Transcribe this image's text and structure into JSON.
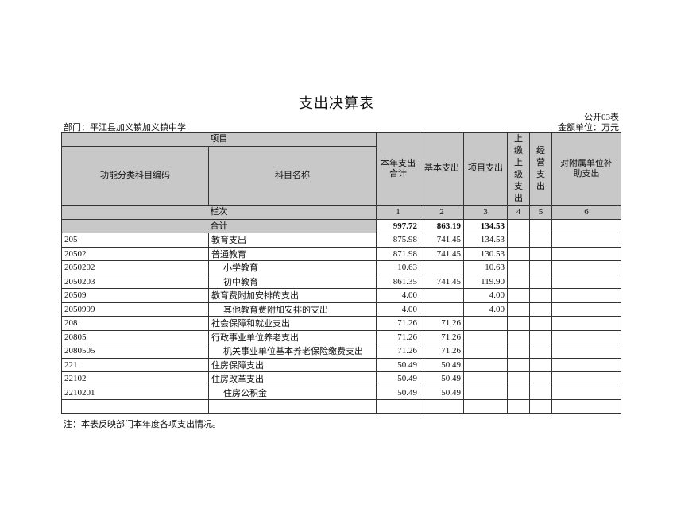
{
  "title": "支出决算表",
  "form_no": "公开03表",
  "department": "部门：平江县加义镇加义镇中学",
  "unit": "金额单位：万元",
  "header": {
    "item": "项目",
    "code": "功能分类科目编码",
    "name": "科目名称",
    "total": "本年支出合计",
    "basic": "基本支出",
    "project": "项目支出",
    "upper": "上缴上级支出",
    "business": "经营支出",
    "subsidy": "对附属单位补助支出",
    "seq_label": "栏次",
    "seq": [
      "1",
      "2",
      "3",
      "4",
      "5",
      "6"
    ],
    "sum_label": "合计",
    "sum": [
      "997.72",
      "863.19",
      "134.53",
      "",
      "",
      ""
    ]
  },
  "rows": [
    {
      "code": "205",
      "name": "教育支出",
      "indent": false,
      "values": [
        "875.98",
        "741.45",
        "134.53",
        "",
        "",
        ""
      ]
    },
    {
      "code": "20502",
      "name": "普通教育",
      "indent": false,
      "values": [
        "871.98",
        "741.45",
        "130.53",
        "",
        "",
        ""
      ]
    },
    {
      "code": "2050202",
      "name": "小学教育",
      "indent": true,
      "values": [
        "10.63",
        "",
        "10.63",
        "",
        "",
        ""
      ]
    },
    {
      "code": "2050203",
      "name": "初中教育",
      "indent": true,
      "values": [
        "861.35",
        "741.45",
        "119.90",
        "",
        "",
        ""
      ]
    },
    {
      "code": "20509",
      "name": "教育费附加安排的支出",
      "indent": false,
      "values": [
        "4.00",
        "",
        "4.00",
        "",
        "",
        ""
      ]
    },
    {
      "code": "2050999",
      "name": "其他教育费附加安排的支出",
      "indent": true,
      "values": [
        "4.00",
        "",
        "4.00",
        "",
        "",
        ""
      ]
    },
    {
      "code": "208",
      "name": "社会保障和就业支出",
      "indent": false,
      "values": [
        "71.26",
        "71.26",
        "",
        "",
        "",
        ""
      ]
    },
    {
      "code": "20805",
      "name": "行政事业单位养老支出",
      "indent": false,
      "values": [
        "71.26",
        "71.26",
        "",
        "",
        "",
        ""
      ]
    },
    {
      "code": "2080505",
      "name": "机关事业单位基本养老保险缴费支出",
      "indent": true,
      "values": [
        "71.26",
        "71.26",
        "",
        "",
        "",
        ""
      ]
    },
    {
      "code": "221",
      "name": "住房保障支出",
      "indent": false,
      "values": [
        "50.49",
        "50.49",
        "",
        "",
        "",
        ""
      ]
    },
    {
      "code": "22102",
      "name": "住房改革支出",
      "indent": false,
      "values": [
        "50.49",
        "50.49",
        "",
        "",
        "",
        ""
      ]
    },
    {
      "code": "2210201",
      "name": "住房公积金",
      "indent": true,
      "values": [
        "50.49",
        "50.49",
        "",
        "",
        "",
        ""
      ]
    },
    {
      "code": "",
      "name": "",
      "indent": false,
      "values": [
        "",
        "",
        "",
        "",
        "",
        ""
      ]
    }
  ],
  "note": "注：本表反映部门本年度各项支出情况。"
}
